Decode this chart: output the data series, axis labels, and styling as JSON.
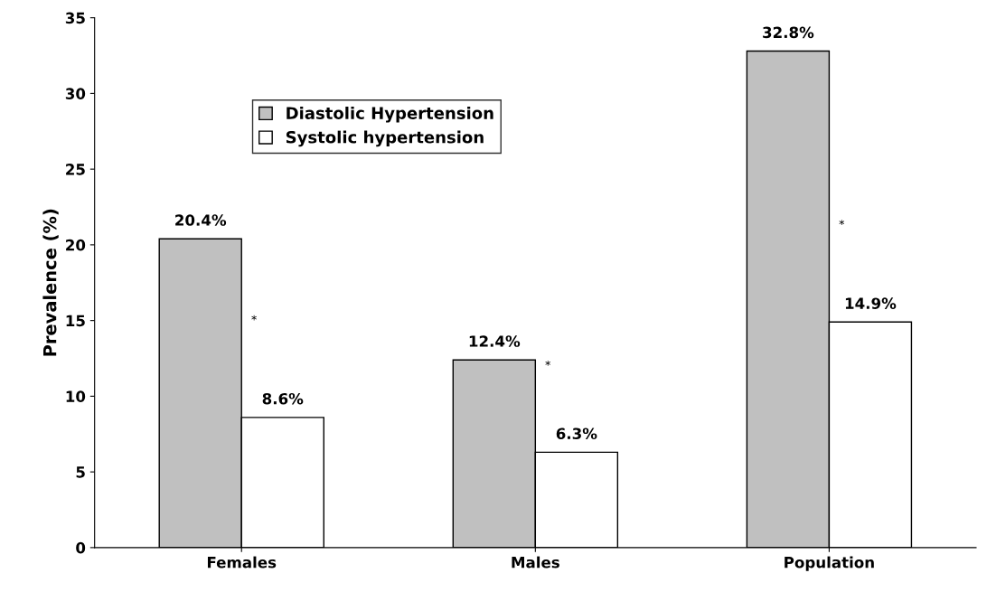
{
  "chart_data": {
    "type": "bar",
    "ylabel": "Prevalence (%)",
    "categories": [
      "Females",
      "Males",
      "Population"
    ],
    "series": [
      {
        "name": "Diastolic Hypertension",
        "color": "#c0c0c0",
        "values": [
          20.4,
          12.4,
          32.8
        ],
        "value_labels": [
          "20.4%",
          "12.4%",
          "32.8%"
        ]
      },
      {
        "name": "Systolic hypertension",
        "color": "#ffffff",
        "values": [
          8.6,
          6.3,
          14.9
        ],
        "value_labels": [
          "8.6%",
          "6.3%",
          "14.9%"
        ]
      }
    ],
    "ylim": [
      0,
      35
    ],
    "yticks": [
      0,
      5,
      10,
      15,
      20,
      25,
      30,
      35
    ],
    "grid": false,
    "legend": "top left",
    "annotations": [
      {
        "text": "*",
        "x": "Females",
        "y": 15.0
      },
      {
        "text": "*",
        "x": "Males",
        "y": 12.0
      },
      {
        "text": "*",
        "x": "Population",
        "y": 21.3
      }
    ]
  }
}
